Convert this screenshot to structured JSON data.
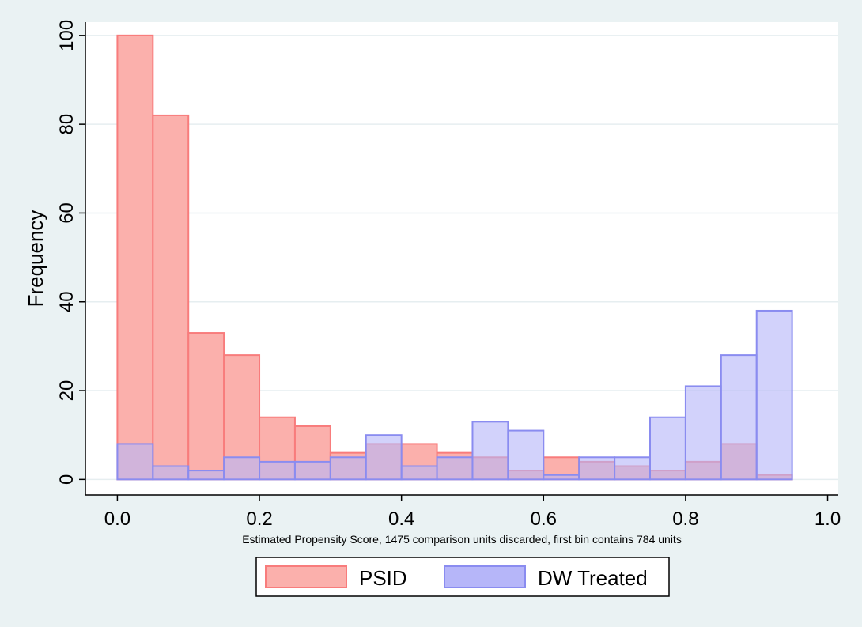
{
  "chart_data": {
    "type": "bar",
    "title": "",
    "xlabel": "Estimated Propensity Score, 1475 comparison units discarded, first bin contains 784 units",
    "ylabel": "Frequency",
    "xlim": [
      -0.045,
      1.015
    ],
    "ylim": [
      -3.5,
      103
    ],
    "x_ticks": [
      "0.0",
      "0.2",
      "0.4",
      "0.6",
      "0.8",
      "1.0"
    ],
    "y_ticks": [
      "0",
      "20",
      "40",
      "60",
      "80",
      "100"
    ],
    "grid": true,
    "legend_position": "bottom",
    "bin_edges": [
      0.0,
      0.05,
      0.1,
      0.15,
      0.2,
      0.25,
      0.3,
      0.35,
      0.4,
      0.45,
      0.5,
      0.55,
      0.6,
      0.65,
      0.7,
      0.75,
      0.8,
      0.85,
      0.9,
      0.95
    ],
    "series": [
      {
        "name": "PSID",
        "color": "#f87c7c",
        "fill": "#fbb0ac",
        "values": [
          100,
          82,
          33,
          28,
          14,
          12,
          6,
          8,
          8,
          6,
          5,
          2,
          5,
          4,
          3,
          2,
          4,
          8,
          1
        ]
      },
      {
        "name": "DW Treated",
        "color": "#8a8cf0",
        "fill": "#b6b6f9",
        "values": [
          8,
          3,
          2,
          5,
          4,
          4,
          5,
          10,
          3,
          5,
          13,
          11,
          1,
          5,
          5,
          14,
          21,
          28,
          38
        ]
      }
    ]
  }
}
